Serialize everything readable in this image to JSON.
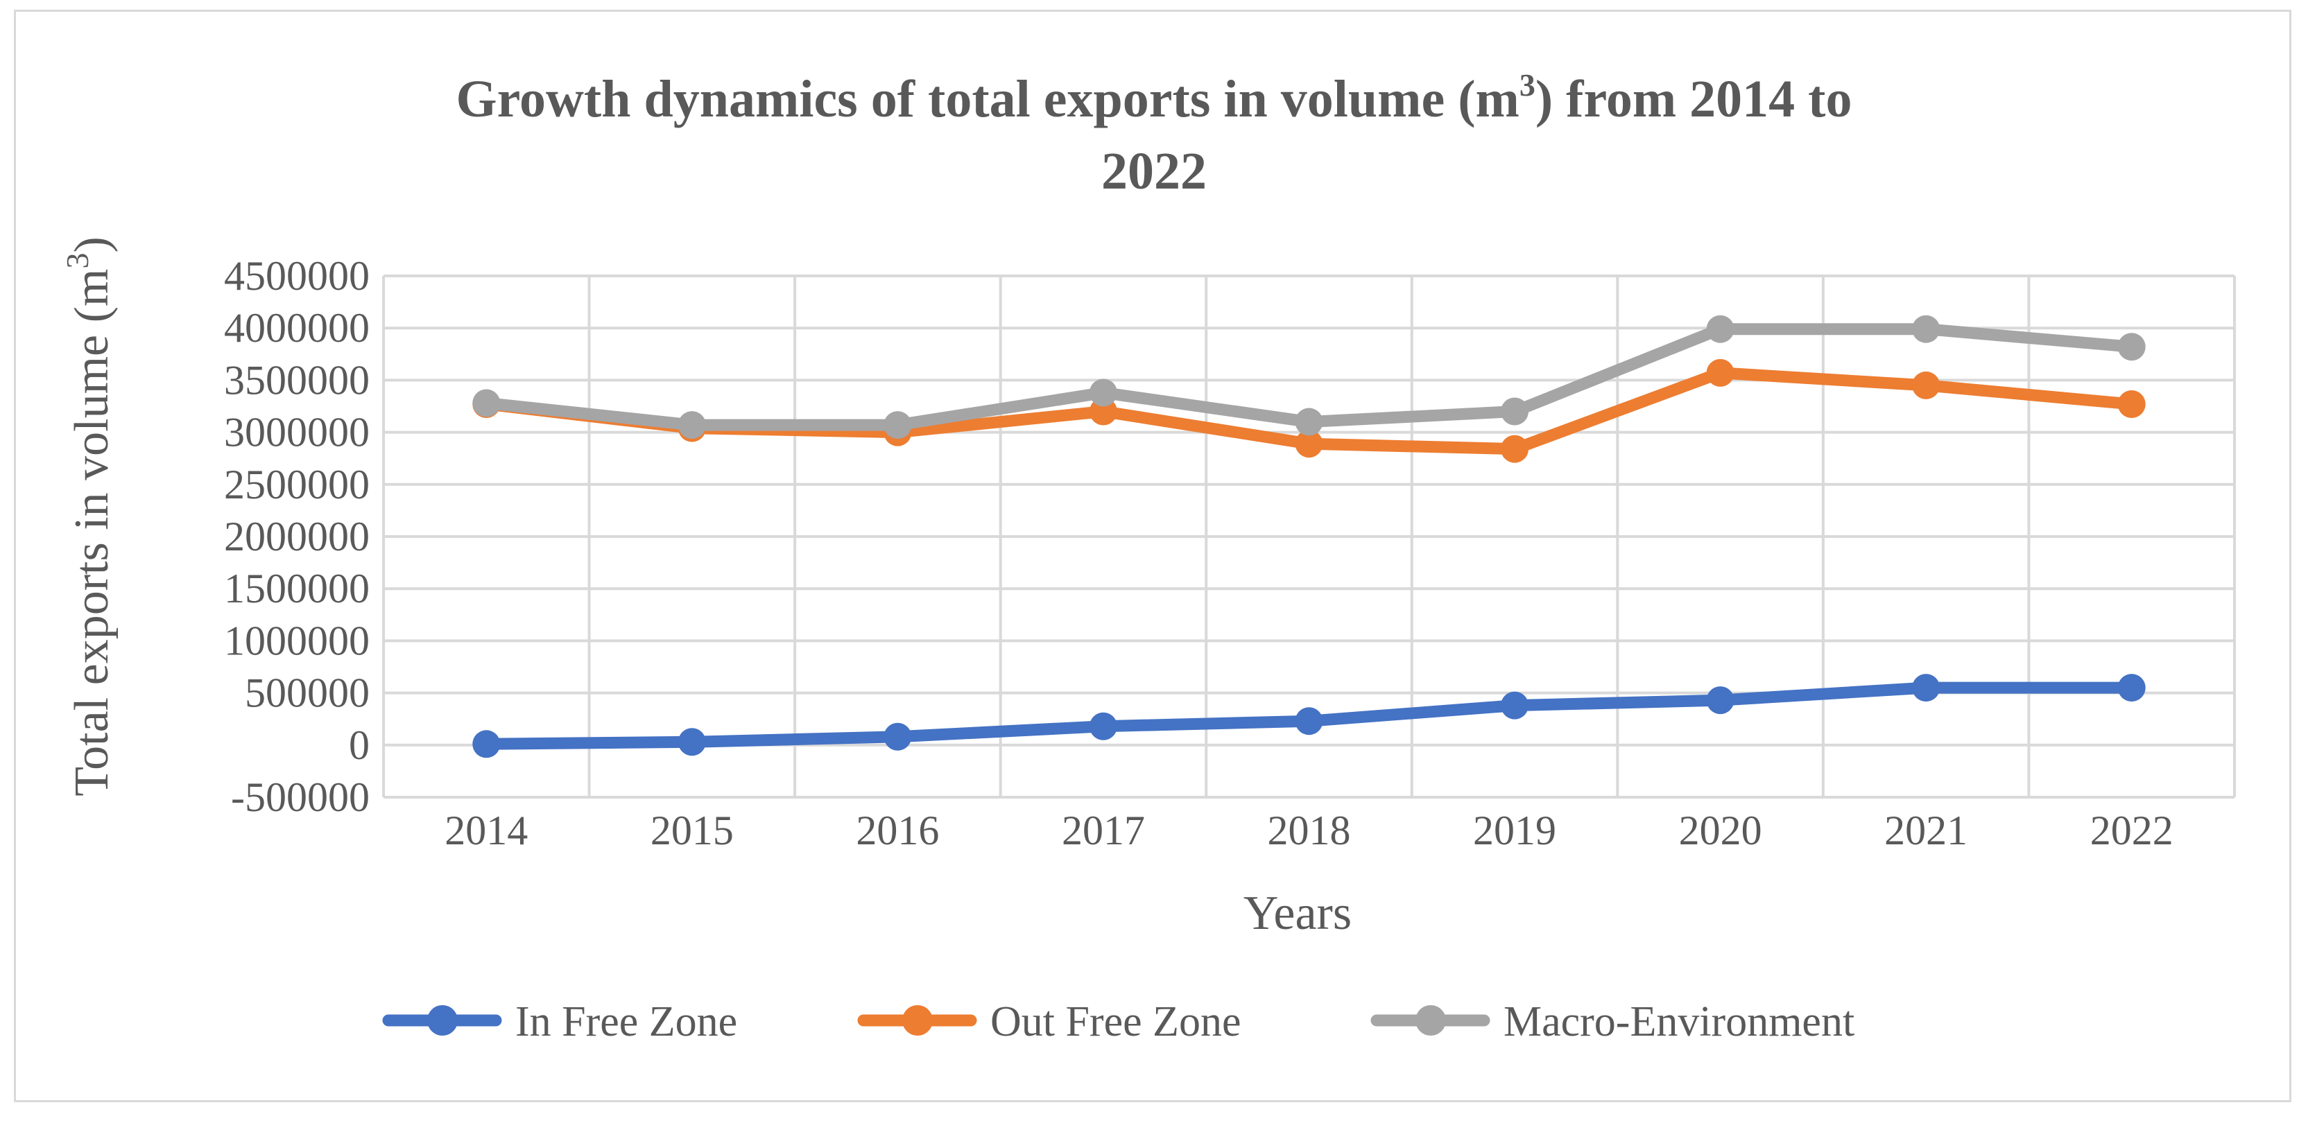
{
  "chart_data": {
    "type": "line",
    "title_main": "Growth dynamics of total exports in volume (m",
    "title_sup": "3",
    "title_rest": ")  from 2014 to",
    "title_line2": "2022",
    "xlabel": "Years",
    "ylabel_main": "Total exports in volume (m",
    "ylabel_sup": "3",
    "ylabel_end": ")",
    "categories": [
      "2014",
      "2015",
      "2016",
      "2017",
      "2018",
      "2019",
      "2020",
      "2021",
      "2022"
    ],
    "ylim": [
      -500000,
      4500000
    ],
    "yticks": [
      -500000,
      0,
      500000,
      1000000,
      1500000,
      2000000,
      2500000,
      3000000,
      3500000,
      4000000,
      4500000
    ],
    "ytick_labels": [
      "-500000",
      "0",
      "500000",
      "1000000",
      "1500000",
      "2000000",
      "2500000",
      "3000000",
      "3500000",
      "4000000",
      "4500000"
    ],
    "grid": true,
    "legend_position": "bottom",
    "series": [
      {
        "name": "In Free Zone",
        "color": "#4472c4",
        "values": [
          10000,
          30000,
          80000,
          180000,
          230000,
          380000,
          430000,
          550000,
          550000
        ]
      },
      {
        "name": "Out Free Zone",
        "color": "#ed7d31",
        "values": [
          3270000,
          3040000,
          3000000,
          3200000,
          2890000,
          2840000,
          3570000,
          3450000,
          3270000
        ]
      },
      {
        "name": "Macro-Environment",
        "color": "#a5a5a5",
        "values": [
          3280000,
          3070000,
          3070000,
          3380000,
          3100000,
          3200000,
          3990000,
          3990000,
          3820000
        ]
      }
    ]
  }
}
